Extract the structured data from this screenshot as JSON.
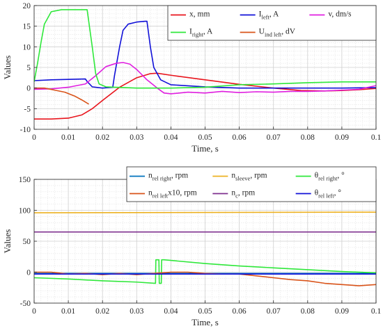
{
  "chart_data": [
    {
      "type": "line",
      "xlabel": "Time, s",
      "ylabel": "Values",
      "xlim": [
        0,
        0.1
      ],
      "ylim": [
        -10,
        20
      ],
      "xticks": [
        "0",
        "0.01",
        "0.02",
        "0.03",
        "0.04",
        "0.05",
        "0.06",
        "0.07",
        "0.08",
        "0.09",
        "0.1"
      ],
      "yticks": [
        "-10",
        "-5",
        "0",
        "5",
        "10",
        "15",
        "20"
      ],
      "grid": true,
      "minor_grid": true,
      "legend_position": "top-right",
      "series": [
        {
          "name": "x, mm",
          "color": "#e8141c",
          "legend_main": "x, mm",
          "legend_sub": "",
          "legend_tail": "",
          "points": [
            [
              0,
              -7.5
            ],
            [
              0.005,
              -7.5
            ],
            [
              0.01,
              -7.3
            ],
            [
              0.014,
              -6.5
            ],
            [
              0.017,
              -5.0
            ],
            [
              0.02,
              -3.0
            ],
            [
              0.025,
              0.2
            ],
            [
              0.03,
              2.5
            ],
            [
              0.034,
              3.5
            ],
            [
              0.036,
              3.6
            ],
            [
              0.04,
              3.1
            ],
            [
              0.05,
              2.0
            ],
            [
              0.06,
              0.9
            ],
            [
              0.07,
              0.0
            ],
            [
              0.078,
              -0.6
            ],
            [
              0.085,
              -0.7
            ],
            [
              0.09,
              -0.6
            ],
            [
              0.095,
              -0.4
            ],
            [
              0.1,
              -0.1
            ]
          ]
        },
        {
          "name": "I left, A",
          "color": "#1010d8",
          "legend_main": "I",
          "legend_sub": "left",
          "legend_tail": ", A",
          "points": [
            [
              0,
              1.8
            ],
            [
              0.005,
              2.0
            ],
            [
              0.01,
              2.1
            ],
            [
              0.015,
              2.2
            ],
            [
              0.0155,
              1.6
            ],
            [
              0.017,
              0.3
            ],
            [
              0.02,
              0.0
            ],
            [
              0.023,
              0.2
            ],
            [
              0.0235,
              3.0
            ],
            [
              0.025,
              10.0
            ],
            [
              0.026,
              14.0
            ],
            [
              0.0275,
              15.5
            ],
            [
              0.03,
              16.0
            ],
            [
              0.0325,
              16.2
            ],
            [
              0.033,
              16.2
            ],
            [
              0.034,
              10.0
            ],
            [
              0.035,
              5.0
            ],
            [
              0.037,
              2.0
            ],
            [
              0.04,
              0.8
            ],
            [
              0.05,
              0.3
            ],
            [
              0.06,
              0.0
            ],
            [
              0.07,
              0.0
            ],
            [
              0.08,
              0.0
            ],
            [
              0.09,
              0.0
            ],
            [
              0.1,
              0.1
            ]
          ]
        },
        {
          "name": "v, dm/s",
          "color": "#e01ee0",
          "legend_main": "v, dm/s",
          "legend_sub": "",
          "legend_tail": "",
          "points": [
            [
              0,
              -0.3
            ],
            [
              0.005,
              -0.2
            ],
            [
              0.01,
              0.2
            ],
            [
              0.015,
              1.0
            ],
            [
              0.018,
              3.0
            ],
            [
              0.021,
              5.2
            ],
            [
              0.024,
              6.0
            ],
            [
              0.026,
              6.2
            ],
            [
              0.028,
              5.8
            ],
            [
              0.03,
              4.5
            ],
            [
              0.033,
              2.0
            ],
            [
              0.036,
              0.0
            ],
            [
              0.038,
              -1.2
            ],
            [
              0.04,
              -1.4
            ],
            [
              0.045,
              -1.0
            ],
            [
              0.05,
              -1.2
            ],
            [
              0.055,
              -0.8
            ],
            [
              0.06,
              -1.1
            ],
            [
              0.065,
              -0.9
            ],
            [
              0.07,
              -1.0
            ],
            [
              0.075,
              -0.8
            ],
            [
              0.08,
              -0.8
            ],
            [
              0.085,
              -0.7
            ],
            [
              0.09,
              -0.5
            ],
            [
              0.095,
              -0.3
            ],
            [
              0.1,
              0.6
            ]
          ]
        },
        {
          "name": "I right, A",
          "color": "#2ee83a",
          "legend_main": "I",
          "legend_sub": "right",
          "legend_tail": ", A",
          "points": [
            [
              0,
              1.5
            ],
            [
              0.001,
              6.0
            ],
            [
              0.002,
              11.0
            ],
            [
              0.003,
              15.5
            ],
            [
              0.005,
              18.5
            ],
            [
              0.008,
              19.0
            ],
            [
              0.012,
              19.0
            ],
            [
              0.0155,
              19.0
            ],
            [
              0.017,
              10.0
            ],
            [
              0.018,
              3.5
            ],
            [
              0.019,
              1.0
            ],
            [
              0.021,
              0.3
            ],
            [
              0.03,
              0.0
            ],
            [
              0.04,
              0.0
            ],
            [
              0.05,
              0.2
            ],
            [
              0.06,
              0.8
            ],
            [
              0.07,
              1.0
            ],
            [
              0.08,
              1.3
            ],
            [
              0.09,
              1.5
            ],
            [
              0.1,
              1.5
            ]
          ]
        },
        {
          "name": "U ind left, dV",
          "color": "#d95319",
          "legend_main": "U",
          "legend_sub": "ind left",
          "legend_tail": ", dV",
          "points": [
            [
              0,
              0.0
            ],
            [
              0.003,
              0.0
            ],
            [
              0.006,
              -0.5
            ],
            [
              0.009,
              -1.0
            ],
            [
              0.012,
              -2.0
            ],
            [
              0.014,
              -2.9
            ],
            [
              0.016,
              -3.9
            ]
          ]
        }
      ]
    },
    {
      "type": "line",
      "xlabel": "Time, s",
      "ylabel": "Values",
      "xlim": [
        0,
        0.1
      ],
      "ylim": [
        -50,
        150
      ],
      "xticks": [
        "0",
        "0.01",
        "0.02",
        "0.03",
        "0.04",
        "0.05",
        "0.06",
        "0.07",
        "0.08",
        "0.09",
        "0.1"
      ],
      "yticks": [
        "-50",
        "0",
        "50",
        "100",
        "150"
      ],
      "grid": true,
      "minor_grid": true,
      "legend_position": "top-right",
      "series": [
        {
          "name": "n rel right, rpm",
          "color": "#0072bd",
          "legend_main": "n",
          "legend_sub": "rel right",
          "legend_tail": ", rpm",
          "points": [
            [
              0,
              -2
            ],
            [
              0.1,
              -2
            ]
          ]
        },
        {
          "name": "n sleeve, rpm",
          "color": "#edb120",
          "legend_main": "n",
          "legend_sub": "sleeve",
          "legend_tail": ", rpm",
          "points": [
            [
              0,
              96
            ],
            [
              0.1,
              97
            ]
          ]
        },
        {
          "name": "θ rel right, °",
          "color": "#2ee83a",
          "legend_main": "θ",
          "legend_sub": "rel right",
          "legend_tail": ", °",
          "points": [
            [
              0,
              -9
            ],
            [
              0.01,
              -11
            ],
            [
              0.02,
              -14
            ],
            [
              0.03,
              -16
            ],
            [
              0.0355,
              -18
            ],
            [
              0.0356,
              20
            ],
            [
              0.0365,
              20
            ],
            [
              0.0366,
              -18
            ],
            [
              0.0372,
              -18
            ],
            [
              0.0373,
              20
            ],
            [
              0.038,
              20
            ],
            [
              0.04,
              19
            ],
            [
              0.05,
              14
            ],
            [
              0.06,
              10
            ],
            [
              0.07,
              7
            ],
            [
              0.08,
              4
            ],
            [
              0.09,
              1
            ],
            [
              0.1,
              -1
            ]
          ]
        },
        {
          "name": "n rel left x10, rpm",
          "color": "#d95319",
          "legend_main": "n",
          "legend_sub": "rel left",
          "legend_tail": "x10, rpm",
          "points": [
            [
              0,
              0
            ],
            [
              0.005,
              0
            ],
            [
              0.01,
              -3
            ],
            [
              0.015,
              -2
            ],
            [
              0.02,
              -4
            ],
            [
              0.025,
              -2
            ],
            [
              0.03,
              -4
            ],
            [
              0.035,
              -2
            ],
            [
              0.04,
              0
            ],
            [
              0.045,
              0
            ],
            [
              0.05,
              -2
            ],
            [
              0.055,
              -3
            ],
            [
              0.06,
              -3
            ],
            [
              0.065,
              -6
            ],
            [
              0.07,
              -9
            ],
            [
              0.075,
              -12
            ],
            [
              0.08,
              -14
            ],
            [
              0.085,
              -18
            ],
            [
              0.09,
              -20
            ],
            [
              0.095,
              -22
            ],
            [
              0.1,
              -20
            ]
          ]
        },
        {
          "name": "n c, rpm",
          "color": "#7e2f8e",
          "legend_main": "n",
          "legend_sub": "c",
          "legend_tail": ", rpm",
          "points": [
            [
              0,
              65
            ],
            [
              0.1,
              65
            ]
          ]
        },
        {
          "name": "θ rel left, °",
          "color": "#1010d8",
          "legend_main": "θ",
          "legend_sub": "rel left",
          "legend_tail": ", °",
          "points": [
            [
              0,
              -3
            ],
            [
              0.1,
              -3
            ]
          ]
        }
      ]
    }
  ]
}
